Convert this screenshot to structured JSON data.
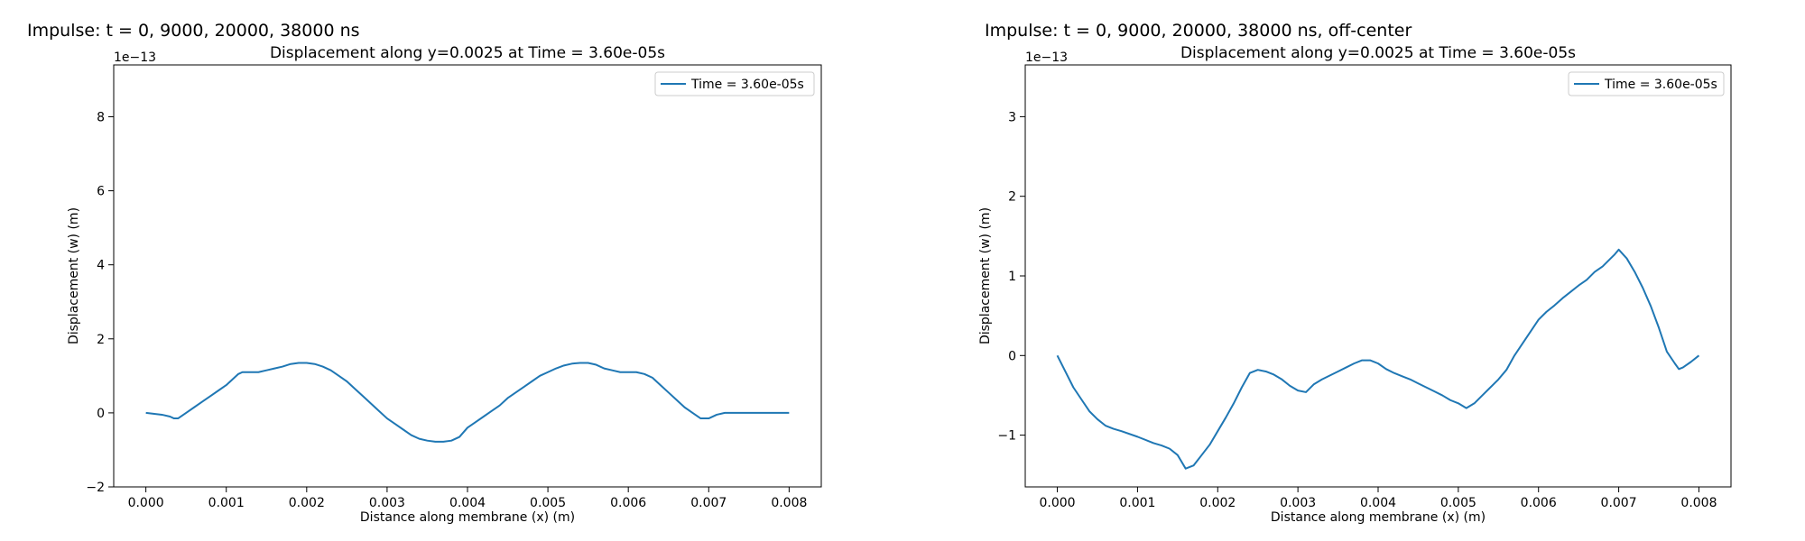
{
  "chart_data": [
    {
      "type": "line",
      "suptitle": "Impulse: t = 0, 9000, 20000, 38000 ns",
      "title": "Displacement along y=0.0025 at Time = 3.60e-05s",
      "xlabel": "Distance along membrane (x) (m)",
      "ylabel": "Displacement (w) (m)",
      "y_offset_text": "1e−13",
      "xlim": [
        -0.0004,
        0.0084
      ],
      "ylim": [
        -2.0,
        9.4
      ],
      "xticks": [
        0.0,
        0.001,
        0.002,
        0.003,
        0.004,
        0.005,
        0.006,
        0.007,
        0.008
      ],
      "xtick_labels": [
        "0.000",
        "0.001",
        "0.002",
        "0.003",
        "0.004",
        "0.005",
        "0.006",
        "0.007",
        "0.008"
      ],
      "yticks": [
        -2,
        0,
        2,
        4,
        6,
        8
      ],
      "ytick_labels": [
        "−2",
        "0",
        "2",
        "4",
        "6",
        "8"
      ],
      "grid": false,
      "legend_position": "top-right",
      "series": [
        {
          "name": "Time = 3.60e-05s",
          "color": "#1f77b4",
          "x": [
            0.0,
            0.0002,
            0.0003,
            0.00035,
            0.0004,
            0.0005,
            0.0006,
            0.0007,
            0.0008,
            0.0009,
            0.001,
            0.0011,
            0.00115,
            0.0012,
            0.0013,
            0.0014,
            0.0015,
            0.0016,
            0.0017,
            0.0018,
            0.0019,
            0.002,
            0.0021,
            0.0022,
            0.0023,
            0.0024,
            0.0025,
            0.0026,
            0.0027,
            0.0028,
            0.0029,
            0.003,
            0.0031,
            0.0032,
            0.0033,
            0.0034,
            0.0035,
            0.0036,
            0.0037,
            0.0038,
            0.0039,
            0.004,
            0.0041,
            0.0042,
            0.0043,
            0.0044,
            0.0045,
            0.0046,
            0.0047,
            0.0048,
            0.0049,
            0.005,
            0.0051,
            0.0052,
            0.0053,
            0.0054,
            0.0055,
            0.0056,
            0.0057,
            0.0058,
            0.0059,
            0.006,
            0.0061,
            0.0062,
            0.0063,
            0.0064,
            0.0065,
            0.0066,
            0.0067,
            0.0068,
            0.0069,
            0.007,
            0.0071,
            0.0072,
            0.0073,
            0.0074,
            0.0075,
            0.0076,
            0.00765,
            0.0077,
            0.0078,
            0.0079,
            0.008
          ],
          "y": [
            0.0,
            -0.05,
            -0.1,
            -0.15,
            -0.15,
            0.0,
            0.15,
            0.3,
            0.45,
            0.6,
            0.75,
            0.95,
            1.05,
            1.1,
            1.1,
            1.1,
            1.15,
            1.2,
            1.25,
            1.32,
            1.35,
            1.35,
            1.32,
            1.25,
            1.15,
            1.0,
            0.85,
            0.65,
            0.45,
            0.25,
            0.05,
            -0.15,
            -0.3,
            -0.45,
            -0.6,
            -0.7,
            -0.75,
            -0.78,
            -0.78,
            -0.75,
            -0.65,
            -0.4,
            -0.25,
            -0.1,
            0.05,
            0.2,
            0.4,
            0.55,
            0.7,
            0.85,
            1.0,
            1.1,
            1.2,
            1.28,
            1.33,
            1.35,
            1.35,
            1.3,
            1.2,
            1.15,
            1.1,
            1.1,
            1.1,
            1.05,
            0.95,
            0.75,
            0.55,
            0.35,
            0.15,
            0.0,
            -0.15,
            -0.15,
            -0.05,
            0.0,
            0.0,
            0.0,
            0.0,
            0.0,
            0.0,
            0.0,
            0.0,
            0.0,
            0.0
          ]
        }
      ]
    },
    {
      "type": "line",
      "suptitle": "Impulse: t = 0, 9000, 20000, 38000 ns, off-center",
      "title": "Displacement along y=0.0025 at Time = 3.60e-05s",
      "xlabel": "Distance along membrane (x) (m)",
      "ylabel": "Displacement (w) (m)",
      "y_offset_text": "1e−13",
      "xlim": [
        -0.0004,
        0.0084
      ],
      "ylim": [
        -1.65,
        3.65
      ],
      "xticks": [
        0.0,
        0.001,
        0.002,
        0.003,
        0.004,
        0.005,
        0.006,
        0.007,
        0.008
      ],
      "xtick_labels": [
        "0.000",
        "0.001",
        "0.002",
        "0.003",
        "0.004",
        "0.005",
        "0.006",
        "0.007",
        "0.008"
      ],
      "yticks": [
        -1,
        0,
        1,
        2,
        3
      ],
      "ytick_labels": [
        "−1",
        "0",
        "1",
        "2",
        "3"
      ],
      "grid": false,
      "legend_position": "top-right",
      "series": [
        {
          "name": "Time = 3.60e-05s",
          "color": "#1f77b4",
          "x": [
            0.0,
            0.0001,
            0.0002,
            0.0003,
            0.0004,
            0.0005,
            0.0006,
            0.0007,
            0.0008,
            0.001,
            0.0012,
            0.0013,
            0.0014,
            0.0015,
            0.0016,
            0.0017,
            0.0018,
            0.0019,
            0.002,
            0.0021,
            0.0022,
            0.0023,
            0.0024,
            0.0025,
            0.0026,
            0.0027,
            0.0028,
            0.0029,
            0.003,
            0.0031,
            0.0032,
            0.0033,
            0.0034,
            0.0035,
            0.0036,
            0.0037,
            0.0038,
            0.0039,
            0.004,
            0.0041,
            0.0042,
            0.0043,
            0.0044,
            0.0045,
            0.0046,
            0.0047,
            0.0048,
            0.0049,
            0.005,
            0.0051,
            0.0052,
            0.0053,
            0.0054,
            0.0055,
            0.0056,
            0.0057,
            0.0058,
            0.0059,
            0.006,
            0.0061,
            0.0062,
            0.0063,
            0.0064,
            0.0065,
            0.0066,
            0.0067,
            0.0068,
            0.0069,
            0.00695,
            0.007,
            0.0071,
            0.0072,
            0.0073,
            0.0074,
            0.0075,
            0.0076,
            0.0077,
            0.00775,
            0.0078,
            0.0079,
            0.008
          ],
          "y": [
            0.0,
            -0.2,
            -0.4,
            -0.55,
            -0.7,
            -0.8,
            -0.88,
            -0.92,
            -0.95,
            -1.02,
            -1.1,
            -1.13,
            -1.17,
            -1.25,
            -1.42,
            -1.38,
            -1.25,
            -1.12,
            -0.95,
            -0.78,
            -0.6,
            -0.4,
            -0.22,
            -0.18,
            -0.2,
            -0.24,
            -0.3,
            -0.38,
            -0.44,
            -0.46,
            -0.36,
            -0.3,
            -0.25,
            -0.2,
            -0.15,
            -0.1,
            -0.06,
            -0.06,
            -0.1,
            -0.17,
            -0.22,
            -0.26,
            -0.3,
            -0.35,
            -0.4,
            -0.45,
            -0.5,
            -0.56,
            -0.6,
            -0.66,
            -0.6,
            -0.5,
            -0.4,
            -0.3,
            -0.18,
            0.0,
            0.15,
            0.3,
            0.45,
            0.55,
            0.63,
            0.72,
            0.8,
            0.88,
            0.95,
            1.05,
            1.12,
            1.22,
            1.27,
            1.33,
            1.22,
            1.05,
            0.85,
            0.62,
            0.35,
            0.05,
            -0.1,
            -0.17,
            -0.15,
            -0.08,
            0.0
          ]
        }
      ]
    }
  ]
}
